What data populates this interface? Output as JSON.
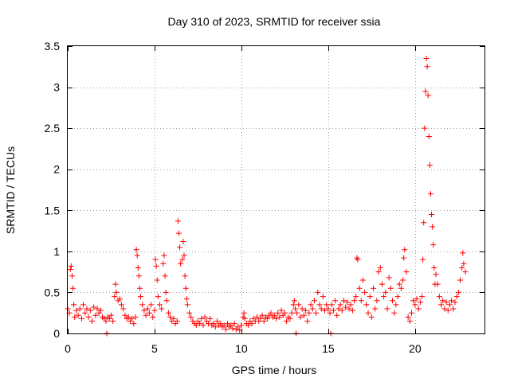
{
  "chart_data": {
    "type": "scatter",
    "title": "Day 310 of 2023, SRMTID for receiver ssia",
    "xlabel": "GPS time / hours",
    "ylabel": "SRMTID / TECUs",
    "xlim": [
      0,
      24
    ],
    "ylim": [
      0,
      3.5
    ],
    "xticks": [
      0,
      5,
      10,
      15,
      20
    ],
    "yticks": [
      0,
      0.5,
      1,
      1.5,
      2,
      2.5,
      3,
      3.5
    ],
    "xtick_labels": [
      "0",
      "5",
      "10",
      "15",
      "20"
    ],
    "ytick_labels": [
      "0",
      "0.5",
      "1",
      "1.5",
      "2",
      "2.5",
      "3",
      "3.5"
    ],
    "grid": true,
    "marker": "+",
    "color": "#ff0000",
    "series": [
      {
        "name": "SRMTID",
        "points": [
          [
            0.0,
            0.3
          ],
          [
            0.1,
            0.25
          ],
          [
            0.15,
            0.78
          ],
          [
            0.2,
            0.82
          ],
          [
            0.25,
            0.7
          ],
          [
            0.3,
            0.55
          ],
          [
            0.35,
            0.35
          ],
          [
            0.4,
            0.2
          ],
          [
            0.5,
            0.28
          ],
          [
            0.6,
            0.22
          ],
          [
            0.7,
            0.3
          ],
          [
            0.8,
            0.18
          ],
          [
            0.9,
            0.35
          ],
          [
            1.0,
            0.25
          ],
          [
            1.1,
            0.3
          ],
          [
            1.2,
            0.2
          ],
          [
            1.3,
            0.28
          ],
          [
            1.4,
            0.15
          ],
          [
            1.5,
            0.32
          ],
          [
            1.6,
            0.22
          ],
          [
            1.7,
            0.3
          ],
          [
            1.8,
            0.25
          ],
          [
            1.9,
            0.28
          ],
          [
            2.0,
            0.2
          ],
          [
            2.1,
            0.18
          ],
          [
            2.2,
            0.15
          ],
          [
            2.25,
            0.0
          ],
          [
            2.3,
            0.2
          ],
          [
            2.4,
            0.18
          ],
          [
            2.5,
            0.22
          ],
          [
            2.6,
            0.15
          ],
          [
            2.7,
            0.45
          ],
          [
            2.75,
            0.6
          ],
          [
            2.8,
            0.5
          ],
          [
            2.9,
            0.4
          ],
          [
            3.0,
            0.42
          ],
          [
            3.1,
            0.35
          ],
          [
            3.2,
            0.3
          ],
          [
            3.3,
            0.22
          ],
          [
            3.4,
            0.18
          ],
          [
            3.5,
            0.2
          ],
          [
            3.6,
            0.15
          ],
          [
            3.7,
            0.18
          ],
          [
            3.8,
            0.12
          ],
          [
            3.9,
            0.2
          ],
          [
            3.95,
            1.02
          ],
          [
            4.0,
            0.95
          ],
          [
            4.05,
            0.8
          ],
          [
            4.1,
            0.7
          ],
          [
            4.15,
            0.55
          ],
          [
            4.2,
            0.45
          ],
          [
            4.3,
            0.35
          ],
          [
            4.4,
            0.28
          ],
          [
            4.5,
            0.22
          ],
          [
            4.6,
            0.3
          ],
          [
            4.7,
            0.25
          ],
          [
            4.8,
            0.35
          ],
          [
            4.9,
            0.2
          ],
          [
            5.0,
            0.28
          ],
          [
            5.05,
            0.9
          ],
          [
            5.1,
            0.82
          ],
          [
            5.15,
            0.65
          ],
          [
            5.2,
            0.45
          ],
          [
            5.3,
            0.35
          ],
          [
            5.4,
            0.3
          ],
          [
            5.5,
            0.85
          ],
          [
            5.55,
            0.95
          ],
          [
            5.6,
            0.7
          ],
          [
            5.65,
            0.5
          ],
          [
            5.7,
            0.4
          ],
          [
            5.8,
            0.25
          ],
          [
            5.9,
            0.2
          ],
          [
            6.0,
            0.15
          ],
          [
            6.1,
            0.18
          ],
          [
            6.2,
            0.12
          ],
          [
            6.3,
            0.15
          ],
          [
            6.35,
            1.37
          ],
          [
            6.4,
            1.22
          ],
          [
            6.45,
            1.05
          ],
          [
            6.5,
            0.85
          ],
          [
            6.6,
            0.9
          ],
          [
            6.65,
            1.12
          ],
          [
            6.7,
            0.95
          ],
          [
            6.75,
            0.7
          ],
          [
            6.8,
            0.55
          ],
          [
            6.85,
            0.42
          ],
          [
            6.9,
            0.35
          ],
          [
            7.0,
            0.25
          ],
          [
            7.1,
            0.2
          ],
          [
            7.2,
            0.15
          ],
          [
            7.3,
            0.12
          ],
          [
            7.4,
            0.1
          ],
          [
            7.5,
            0.15
          ],
          [
            7.6,
            0.12
          ],
          [
            7.7,
            0.18
          ],
          [
            7.8,
            0.1
          ],
          [
            7.9,
            0.2
          ],
          [
            8.0,
            0.15
          ],
          [
            8.1,
            0.12
          ],
          [
            8.2,
            0.18
          ],
          [
            8.3,
            0.1
          ],
          [
            8.4,
            0.12
          ],
          [
            8.5,
            0.08
          ],
          [
            8.6,
            0.15
          ],
          [
            8.7,
            0.1
          ],
          [
            8.8,
            0.12
          ],
          [
            8.9,
            0.08
          ],
          [
            9.0,
            0.1
          ],
          [
            9.1,
            0.05
          ],
          [
            9.2,
            0.12
          ],
          [
            9.3,
            0.08
          ],
          [
            9.4,
            0.1
          ],
          [
            9.5,
            0.06
          ],
          [
            9.6,
            0.12
          ],
          [
            9.7,
            0.05
          ],
          [
            9.8,
            0.08
          ],
          [
            9.9,
            0.04
          ],
          [
            10.0,
            0.1
          ],
          [
            10.1,
            0.2
          ],
          [
            10.15,
            0.25
          ],
          [
            10.2,
            0.18
          ],
          [
            10.3,
            0.12
          ],
          [
            10.4,
            0.1
          ],
          [
            10.5,
            0.15
          ],
          [
            10.6,
            0.12
          ],
          [
            10.7,
            0.18
          ],
          [
            10.8,
            0.15
          ],
          [
            10.9,
            0.2
          ],
          [
            11.0,
            0.15
          ],
          [
            11.1,
            0.18
          ],
          [
            11.2,
            0.22
          ],
          [
            11.3,
            0.15
          ],
          [
            11.4,
            0.2
          ],
          [
            11.5,
            0.18
          ],
          [
            11.6,
            0.22
          ],
          [
            11.7,
            0.25
          ],
          [
            11.8,
            0.2
          ],
          [
            11.9,
            0.22
          ],
          [
            12.0,
            0.18
          ],
          [
            12.1,
            0.25
          ],
          [
            12.2,
            0.2
          ],
          [
            12.3,
            0.28
          ],
          [
            12.4,
            0.22
          ],
          [
            12.5,
            0.25
          ],
          [
            12.6,
            0.15
          ],
          [
            12.7,
            0.2
          ],
          [
            12.8,
            0.18
          ],
          [
            12.9,
            0.25
          ],
          [
            13.0,
            0.35
          ],
          [
            13.05,
            0.4
          ],
          [
            13.1,
            0.3
          ],
          [
            13.15,
            0.0
          ],
          [
            13.2,
            0.25
          ],
          [
            13.3,
            0.35
          ],
          [
            13.4,
            0.2
          ],
          [
            13.5,
            0.3
          ],
          [
            13.6,
            0.22
          ],
          [
            13.7,
            0.28
          ],
          [
            13.8,
            0.15
          ],
          [
            13.9,
            0.25
          ],
          [
            14.0,
            0.35
          ],
          [
            14.1,
            0.3
          ],
          [
            14.2,
            0.4
          ],
          [
            14.3,
            0.25
          ],
          [
            14.4,
            0.5
          ],
          [
            14.5,
            0.35
          ],
          [
            14.6,
            0.3
          ],
          [
            14.7,
            0.45
          ],
          [
            14.8,
            0.28
          ],
          [
            14.9,
            0.35
          ],
          [
            15.0,
            0.3
          ],
          [
            15.1,
            0.25
          ],
          [
            15.15,
            0.0
          ],
          [
            15.2,
            0.35
          ],
          [
            15.3,
            0.28
          ],
          [
            15.4,
            0.4
          ],
          [
            15.5,
            0.22
          ],
          [
            15.6,
            0.3
          ],
          [
            15.7,
            0.35
          ],
          [
            15.8,
            0.28
          ],
          [
            15.9,
            0.4
          ],
          [
            16.0,
            0.32
          ],
          [
            16.1,
            0.38
          ],
          [
            16.2,
            0.3
          ],
          [
            16.3,
            0.35
          ],
          [
            16.4,
            0.28
          ],
          [
            16.5,
            0.4
          ],
          [
            16.6,
            0.45
          ],
          [
            16.65,
            0.92
          ],
          [
            16.7,
            0.9
          ],
          [
            16.8,
            0.55
          ],
          [
            16.9,
            0.4
          ],
          [
            17.0,
            0.65
          ],
          [
            17.1,
            0.5
          ],
          [
            17.2,
            0.35
          ],
          [
            17.3,
            0.25
          ],
          [
            17.4,
            0.45
          ],
          [
            17.5,
            0.2
          ],
          [
            17.6,
            0.55
          ],
          [
            17.7,
            0.3
          ],
          [
            17.8,
            0.4
          ],
          [
            17.9,
            0.75
          ],
          [
            18.0,
            0.8
          ],
          [
            18.1,
            0.6
          ],
          [
            18.2,
            0.45
          ],
          [
            18.3,
            0.5
          ],
          [
            18.4,
            0.3
          ],
          [
            18.5,
            0.68
          ],
          [
            18.6,
            0.55
          ],
          [
            18.7,
            0.4
          ],
          [
            18.8,
            0.25
          ],
          [
            18.9,
            0.35
          ],
          [
            19.0,
            0.45
          ],
          [
            19.1,
            0.6
          ],
          [
            19.2,
            0.55
          ],
          [
            19.3,
            0.65
          ],
          [
            19.35,
            0.92
          ],
          [
            19.4,
            1.02
          ],
          [
            19.5,
            0.75
          ],
          [
            19.6,
            0.2
          ],
          [
            19.7,
            0.15
          ],
          [
            19.8,
            0.25
          ],
          [
            19.9,
            0.4
          ],
          [
            20.0,
            0.35
          ],
          [
            20.1,
            0.42
          ],
          [
            20.2,
            0.3
          ],
          [
            20.3,
            0.38
          ],
          [
            20.4,
            0.45
          ],
          [
            20.45,
            0.9
          ],
          [
            20.5,
            1.35
          ],
          [
            20.55,
            2.5
          ],
          [
            20.6,
            2.95
          ],
          [
            20.65,
            3.35
          ],
          [
            20.7,
            3.25
          ],
          [
            20.75,
            2.9
          ],
          [
            20.8,
            2.4
          ],
          [
            20.85,
            2.05
          ],
          [
            20.9,
            1.7
          ],
          [
            20.95,
            1.45
          ],
          [
            21.0,
            1.3
          ],
          [
            21.05,
            1.08
          ],
          [
            21.1,
            0.8
          ],
          [
            21.15,
            0.6
          ],
          [
            21.2,
            0.72
          ],
          [
            21.3,
            0.6
          ],
          [
            21.4,
            0.45
          ],
          [
            21.5,
            0.35
          ],
          [
            21.6,
            0.4
          ],
          [
            21.7,
            0.3
          ],
          [
            21.8,
            0.38
          ],
          [
            21.9,
            0.28
          ],
          [
            22.0,
            0.35
          ],
          [
            22.1,
            0.4
          ],
          [
            22.2,
            0.3
          ],
          [
            22.3,
            0.38
          ],
          [
            22.4,
            0.45
          ],
          [
            22.5,
            0.5
          ],
          [
            22.6,
            0.65
          ],
          [
            22.7,
            0.8
          ],
          [
            22.75,
            0.98
          ],
          [
            22.8,
            0.85
          ],
          [
            22.9,
            0.75
          ]
        ]
      }
    ]
  }
}
